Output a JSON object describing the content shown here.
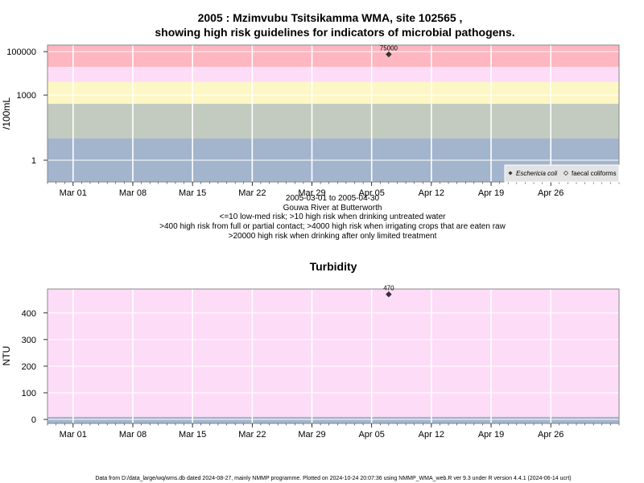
{
  "chart_data": [
    {
      "type": "scatter",
      "title_line1": "2005 : Mzimvubu Tsitsikamma WMA, site 102565 ,",
      "title_line2": "showing high risk guidelines for indicators of microbial pathogens.",
      "ylabel": "/100mL",
      "yscale": "log",
      "ylim": [
        0.1,
        200000
      ],
      "yticks": [
        {
          "value": 100000,
          "label": "100000"
        },
        {
          "value": 1000,
          "label": "1000"
        },
        {
          "value": 1,
          "label": "1"
        }
      ],
      "xlim": [
        "2005-02-26",
        "2005-05-04"
      ],
      "xticks": [
        {
          "date": "2005-03-01",
          "label": "Mar 01"
        },
        {
          "date": "2005-03-08",
          "label": "Mar 08"
        },
        {
          "date": "2005-03-15",
          "label": "Mar 15"
        },
        {
          "date": "2005-03-22",
          "label": "Mar 22"
        },
        {
          "date": "2005-03-29",
          "label": "Mar 29"
        },
        {
          "date": "2005-04-05",
          "label": "Apr 05"
        },
        {
          "date": "2005-04-12",
          "label": "Apr 12"
        },
        {
          "date": "2005-04-19",
          "label": "Apr 19"
        },
        {
          "date": "2005-04-26",
          "label": "Apr 26"
        }
      ],
      "bands": [
        {
          "from": 0.1,
          "to": 10,
          "color": "#a3b4cd"
        },
        {
          "from": 10,
          "to": 400,
          "color": "#c3cabf"
        },
        {
          "from": 400,
          "to": 4000,
          "color": "#fdf7c5"
        },
        {
          "from": 4000,
          "to": 20000,
          "color": "#fddcf7"
        },
        {
          "from": 20000,
          "to": 200000,
          "color": "#feb6c1"
        }
      ],
      "series": [
        {
          "name": "Eschericia coli",
          "marker": "filled-diamond",
          "points": [
            {
              "x": "2005-04-07",
              "y": 75000,
              "label": "75000"
            }
          ]
        },
        {
          "name": "faecal coliforms",
          "marker": "open-diamond",
          "points": []
        }
      ],
      "legend": "bottom-right",
      "grid": true,
      "notes": [
        "2005-03-01 to 2005-04-30",
        "Gouwa River at Butterworth",
        "<=10 low-med risk; >10 high risk when drinking untreated water",
        ">400 high risk from full or partial contact; >4000 high risk when irrigating crops that are eaten raw",
        ">20000 high risk when drinking after only limited treatment"
      ]
    },
    {
      "type": "scatter",
      "title": "Turbidity",
      "ylabel": "NTU",
      "ylim": [
        -15,
        490
      ],
      "yticks": [
        {
          "value": 0,
          "label": "0"
        },
        {
          "value": 100,
          "label": "100"
        },
        {
          "value": 200,
          "label": "200"
        },
        {
          "value": 300,
          "label": "300"
        },
        {
          "value": 400,
          "label": "400"
        }
      ],
      "xlim": [
        "2005-02-26",
        "2005-05-04"
      ],
      "xticks": [
        {
          "date": "2005-03-01",
          "label": "Mar 01"
        },
        {
          "date": "2005-03-08",
          "label": "Mar 08"
        },
        {
          "date": "2005-03-15",
          "label": "Mar 15"
        },
        {
          "date": "2005-03-22",
          "label": "Mar 22"
        },
        {
          "date": "2005-03-29",
          "label": "Mar 29"
        },
        {
          "date": "2005-04-05",
          "label": "Apr 05"
        },
        {
          "date": "2005-04-12",
          "label": "Apr 12"
        },
        {
          "date": "2005-04-19",
          "label": "Apr 19"
        },
        {
          "date": "2005-04-26",
          "label": "Apr 26"
        }
      ],
      "bands": [
        {
          "from": -15,
          "to": 10,
          "color": "#a3b4cd"
        },
        {
          "from": 10,
          "to": 490,
          "color": "#fddcf7"
        }
      ],
      "series": [
        {
          "name": "Turbidity",
          "marker": "filled-diamond",
          "points": [
            {
              "x": "2005-04-07",
              "y": 470,
              "label": "470"
            }
          ]
        }
      ],
      "grid": true
    }
  ],
  "footer": "Data from D:/data_large/wq/wms.db dated 2024-08-27, mainly NMMP programme. Plotted on 2024-10-24 20:07:36 using NMMP_WMA_web.R ver 9.3 under R version 4.4.1 (2024-06-14 ucrt)"
}
